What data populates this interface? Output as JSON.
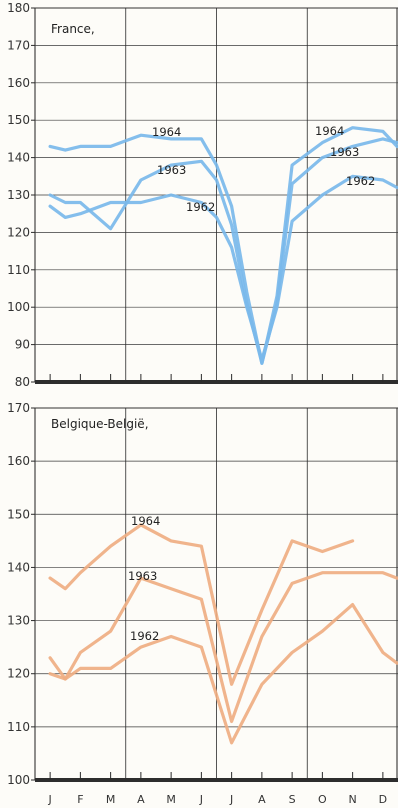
{
  "chart_data": [
    {
      "type": "line",
      "title": "France,",
      "ylim": [
        80,
        180
      ],
      "yticks": [
        80,
        90,
        100,
        110,
        120,
        130,
        140,
        150,
        160,
        170,
        180
      ],
      "x_labels": [],
      "grid": true,
      "color": "#7ab8ea",
      "series": [
        {
          "name": "1964",
          "x": [
            1,
            1.5,
            2,
            3,
            4,
            5,
            6,
            6.5,
            7,
            7.5,
            8,
            8.5,
            9,
            10,
            11,
            12,
            12.5
          ],
          "values": [
            143,
            142,
            143,
            143,
            146,
            145,
            145,
            138,
            127,
            104,
            85,
            103,
            138,
            144,
            148,
            147,
            143
          ]
        },
        {
          "name": "1963",
          "x": [
            1,
            1.5,
            2,
            3,
            4,
            5,
            6,
            6.5,
            7,
            7.5,
            8,
            8.5,
            9,
            10,
            11,
            12,
            12.5
          ],
          "values": [
            130,
            128,
            128,
            121,
            134,
            138,
            139,
            134,
            122,
            101,
            85,
            101,
            133,
            140,
            143,
            145,
            144
          ]
        },
        {
          "name": "1962",
          "x": [
            1,
            1.5,
            2,
            3,
            4,
            5,
            6,
            6.5,
            7,
            7.5,
            8,
            8.5,
            9,
            10,
            11,
            12,
            12.5
          ],
          "values": [
            127,
            124,
            125,
            128,
            128,
            130,
            128,
            124,
            116,
            100,
            86,
            100,
            123,
            130,
            135,
            134,
            132
          ]
        }
      ]
    },
    {
      "type": "line",
      "title": "Belgique-België,",
      "ylim": [
        100,
        170
      ],
      "yticks": [
        100,
        110,
        120,
        130,
        140,
        150,
        160,
        170
      ],
      "x_labels": [
        "J",
        "F",
        "M",
        "A",
        "M",
        "J",
        "J",
        "A",
        "S",
        "O",
        "N",
        "D"
      ],
      "grid": true,
      "color": "#efae82",
      "series": [
        {
          "name": "1964",
          "x": [
            1,
            1.5,
            2,
            3,
            4,
            5,
            6,
            7,
            8,
            9,
            10,
            11
          ],
          "values": [
            138,
            136,
            139,
            144,
            148,
            145,
            144,
            118,
            132,
            145,
            143,
            145
          ]
        },
        {
          "name": "1963",
          "x": [
            1,
            1.5,
            2,
            3,
            4,
            5,
            6,
            7,
            8,
            9,
            10,
            11,
            12,
            12.5
          ],
          "values": [
            120,
            119,
            124,
            128,
            138,
            136,
            134,
            111,
            127,
            137,
            139,
            139,
            139,
            138
          ]
        },
        {
          "name": "1962",
          "x": [
            1,
            1.5,
            2,
            3,
            4,
            5,
            6,
            7,
            8,
            9,
            10,
            11,
            12,
            12.5
          ],
          "values": [
            123,
            119,
            121,
            121,
            125,
            127,
            125,
            107,
            118,
            124,
            128,
            133,
            124,
            122
          ]
        }
      ]
    }
  ]
}
